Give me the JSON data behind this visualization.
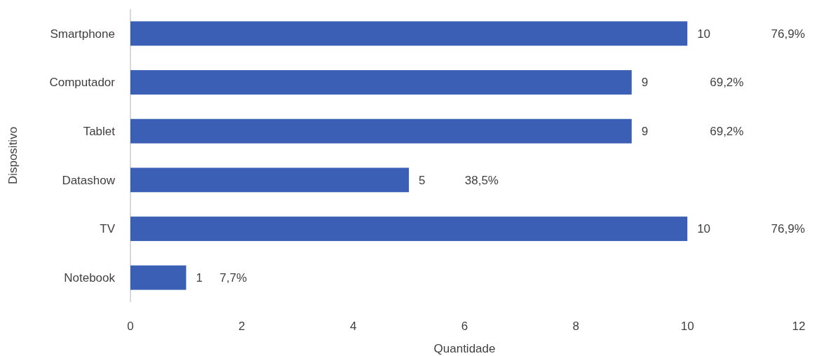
{
  "chart_data": {
    "type": "bar",
    "orientation": "horizontal",
    "xlabel": "Quantidade",
    "ylabel": "Dispositivo",
    "categories": [
      "Smartphone",
      "Computador",
      "Tablet",
      "Datashow",
      "TV",
      "Notebook"
    ],
    "values": [
      10,
      9,
      9,
      5,
      10,
      1
    ],
    "color": "#3b5fb5",
    "data_labels": true,
    "xlim": [
      0,
      12
    ],
    "xticks": [
      0,
      2,
      4,
      6,
      8,
      10,
      12
    ],
    "grid": false,
    "annotations": [
      "76,9%",
      "69,2%",
      "69,2%",
      "38,5%",
      "76,9%",
      "7,7%"
    ]
  }
}
